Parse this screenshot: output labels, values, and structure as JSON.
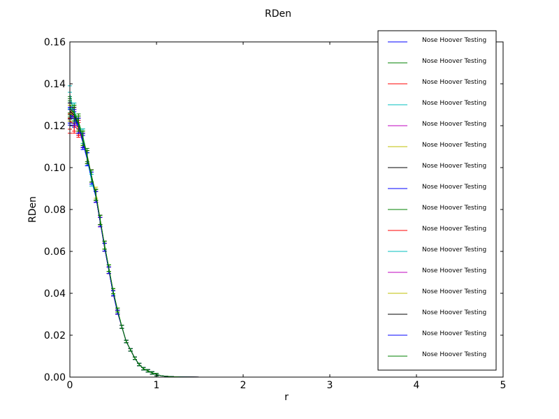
{
  "chart_data": {
    "type": "line",
    "title": "RDen",
    "xlabel": "r",
    "ylabel": "RDen",
    "xlim": [
      0,
      5
    ],
    "ylim": [
      0,
      0.16
    ],
    "x_ticks": [
      "0",
      "1",
      "2",
      "3",
      "4",
      "5"
    ],
    "y_ticks": [
      "0.00",
      "0.02",
      "0.04",
      "0.06",
      "0.08",
      "0.10",
      "0.12",
      "0.14",
      "0.16"
    ],
    "grid": false,
    "legend_position": "top-right",
    "error_bars": true,
    "x": [
      0.0,
      0.05,
      0.1,
      0.15,
      0.2,
      0.25,
      0.3,
      0.35,
      0.4,
      0.45,
      0.5,
      0.55,
      0.6,
      0.65,
      0.7,
      0.75,
      0.8,
      0.85,
      0.9,
      0.95,
      1.0,
      1.05,
      1.1,
      1.2,
      1.3,
      1.5,
      2.0,
      3.0,
      4.0,
      5.0
    ],
    "series": [
      {
        "name": "Nose Hoover Testing",
        "color": "#0000ff",
        "values": [
          0.125,
          0.123,
          0.119,
          0.112,
          0.104,
          0.095,
          0.086,
          0.075,
          0.062,
          0.051,
          0.04,
          0.031,
          0.024,
          0.017,
          0.013,
          0.009,
          0.006,
          0.004,
          0.003,
          0.002,
          0.0012,
          0.0007,
          0.0004,
          0.0002,
          0.0001,
          0,
          0,
          0,
          0,
          0
        ]
      },
      {
        "name": "Nose Hoover Testing",
        "color": "#008000",
        "values": [
          0.13,
          0.127,
          0.122,
          0.115,
          0.106,
          0.096,
          0.087,
          0.075,
          0.063,
          0.052,
          0.041,
          0.032,
          0.024,
          0.017,
          0.013,
          0.009,
          0.006,
          0.004,
          0.003,
          0.002,
          0.0012,
          0.0007,
          0.0004,
          0.0002,
          0.0001,
          0,
          0,
          0,
          0,
          0
        ]
      },
      {
        "name": "Nose Hoover Testing",
        "color": "#ff0000",
        "values": [
          0.12,
          0.12,
          0.118,
          0.113,
          0.105,
          0.096,
          0.086,
          0.074,
          0.062,
          0.051,
          0.04,
          0.031,
          0.024,
          0.017,
          0.013,
          0.009,
          0.006,
          0.004,
          0.003,
          0.002,
          0.0012,
          0.0007,
          0.0004,
          0.0002,
          0.0001,
          0,
          0,
          0,
          0,
          0
        ]
      },
      {
        "name": "Nose Hoover Testing",
        "color": "#00bfbf",
        "values": [
          0.135,
          0.126,
          0.12,
          0.114,
          0.104,
          0.094,
          0.086,
          0.075,
          0.063,
          0.052,
          0.041,
          0.032,
          0.024,
          0.017,
          0.013,
          0.009,
          0.006,
          0.004,
          0.003,
          0.002,
          0.0012,
          0.0007,
          0.0004,
          0.0002,
          0.0001,
          0,
          0,
          0,
          0,
          0
        ]
      },
      {
        "name": "Nose Hoover Testing",
        "color": "#bf00bf",
        "values": [
          0.128,
          0.125,
          0.12,
          0.113,
          0.105,
          0.096,
          0.086,
          0.074,
          0.063,
          0.051,
          0.04,
          0.031,
          0.024,
          0.017,
          0.013,
          0.009,
          0.006,
          0.004,
          0.003,
          0.002,
          0.0012,
          0.0007,
          0.0004,
          0.0002,
          0.0001,
          0,
          0,
          0,
          0,
          0
        ]
      },
      {
        "name": "Nose Hoover Testing",
        "color": "#bfbf00",
        "values": [
          0.127,
          0.126,
          0.121,
          0.114,
          0.105,
          0.096,
          0.088,
          0.075,
          0.063,
          0.052,
          0.041,
          0.032,
          0.024,
          0.017,
          0.013,
          0.009,
          0.006,
          0.004,
          0.003,
          0.002,
          0.0012,
          0.0007,
          0.0004,
          0.0002,
          0.0001,
          0,
          0,
          0,
          0,
          0
        ]
      },
      {
        "name": "Nose Hoover Testing",
        "color": "#000000",
        "values": [
          0.126,
          0.124,
          0.12,
          0.113,
          0.105,
          0.096,
          0.087,
          0.075,
          0.062,
          0.051,
          0.04,
          0.031,
          0.024,
          0.017,
          0.013,
          0.009,
          0.006,
          0.004,
          0.003,
          0.002,
          0.0012,
          0.0007,
          0.0004,
          0.0002,
          0.0001,
          0,
          0,
          0,
          0,
          0
        ]
      },
      {
        "name": "Nose Hoover Testing",
        "color": "#0000ff",
        "values": [
          0.124,
          0.123,
          0.12,
          0.112,
          0.104,
          0.095,
          0.086,
          0.074,
          0.062,
          0.051,
          0.04,
          0.031,
          0.024,
          0.017,
          0.013,
          0.009,
          0.006,
          0.004,
          0.003,
          0.002,
          0.0012,
          0.0007,
          0.0004,
          0.0002,
          0.0001,
          0,
          0,
          0,
          0,
          0
        ]
      },
      {
        "name": "Nose Hoover Testing",
        "color": "#008000",
        "values": [
          0.129,
          0.126,
          0.121,
          0.114,
          0.105,
          0.096,
          0.087,
          0.075,
          0.063,
          0.052,
          0.041,
          0.032,
          0.024,
          0.017,
          0.013,
          0.009,
          0.006,
          0.004,
          0.003,
          0.002,
          0.0012,
          0.0007,
          0.0004,
          0.0002,
          0.0001,
          0,
          0,
          0,
          0,
          0
        ]
      },
      {
        "name": "Nose Hoover Testing",
        "color": "#ff0000",
        "values": [
          0.122,
          0.121,
          0.119,
          0.113,
          0.105,
          0.096,
          0.086,
          0.074,
          0.062,
          0.051,
          0.04,
          0.031,
          0.024,
          0.017,
          0.013,
          0.009,
          0.006,
          0.004,
          0.003,
          0.002,
          0.0012,
          0.0007,
          0.0004,
          0.0002,
          0.0001,
          0,
          0,
          0,
          0,
          0
        ]
      },
      {
        "name": "Nose Hoover Testing",
        "color": "#00bfbf",
        "values": [
          0.132,
          0.127,
          0.121,
          0.115,
          0.104,
          0.094,
          0.086,
          0.075,
          0.063,
          0.052,
          0.041,
          0.032,
          0.024,
          0.017,
          0.013,
          0.009,
          0.006,
          0.004,
          0.003,
          0.002,
          0.0012,
          0.0007,
          0.0004,
          0.0002,
          0.0001,
          0,
          0,
          0,
          0,
          0
        ]
      },
      {
        "name": "Nose Hoover Testing",
        "color": "#bf00bf",
        "values": [
          0.127,
          0.124,
          0.12,
          0.113,
          0.105,
          0.096,
          0.086,
          0.075,
          0.063,
          0.051,
          0.04,
          0.031,
          0.024,
          0.017,
          0.013,
          0.009,
          0.006,
          0.004,
          0.003,
          0.002,
          0.0012,
          0.0007,
          0.0004,
          0.0002,
          0.0001,
          0,
          0,
          0,
          0,
          0
        ]
      },
      {
        "name": "Nose Hoover Testing",
        "color": "#bfbf00",
        "values": [
          0.126,
          0.125,
          0.121,
          0.114,
          0.105,
          0.096,
          0.087,
          0.075,
          0.063,
          0.052,
          0.041,
          0.032,
          0.024,
          0.017,
          0.013,
          0.009,
          0.006,
          0.004,
          0.003,
          0.002,
          0.0012,
          0.0007,
          0.0004,
          0.0002,
          0.0001,
          0,
          0,
          0,
          0,
          0
        ]
      },
      {
        "name": "Nose Hoover Testing",
        "color": "#000000",
        "values": [
          0.127,
          0.125,
          0.12,
          0.113,
          0.105,
          0.096,
          0.087,
          0.075,
          0.062,
          0.051,
          0.04,
          0.031,
          0.024,
          0.017,
          0.013,
          0.009,
          0.006,
          0.004,
          0.003,
          0.002,
          0.0012,
          0.0007,
          0.0004,
          0.0002,
          0.0001,
          0,
          0,
          0,
          0,
          0
        ]
      },
      {
        "name": "Nose Hoover Testing",
        "color": "#0000ff",
        "values": [
          0.125,
          0.124,
          0.12,
          0.113,
          0.104,
          0.095,
          0.086,
          0.074,
          0.062,
          0.051,
          0.04,
          0.031,
          0.024,
          0.017,
          0.013,
          0.009,
          0.006,
          0.004,
          0.003,
          0.002,
          0.0012,
          0.0007,
          0.0004,
          0.0002,
          0.0001,
          0,
          0,
          0,
          0,
          0
        ]
      },
      {
        "name": "Nose Hoover Testing",
        "color": "#008000",
        "values": [
          0.128,
          0.126,
          0.121,
          0.114,
          0.105,
          0.096,
          0.087,
          0.075,
          0.063,
          0.052,
          0.041,
          0.032,
          0.024,
          0.017,
          0.013,
          0.009,
          0.006,
          0.004,
          0.003,
          0.002,
          0.0012,
          0.0007,
          0.0004,
          0.0002,
          0.0001,
          0,
          0,
          0,
          0,
          0
        ]
      }
    ]
  }
}
